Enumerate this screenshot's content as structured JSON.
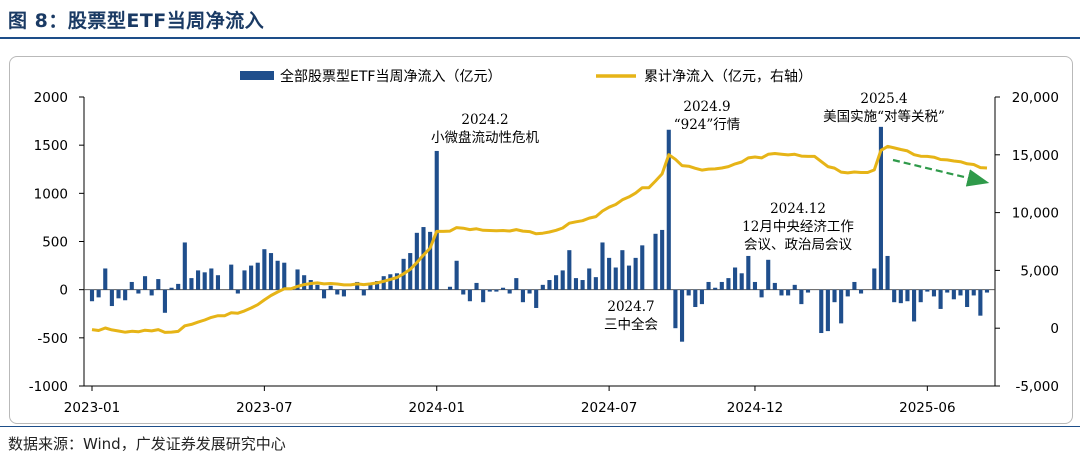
{
  "header": {
    "title": "图 8：股票型ETF当周净流入"
  },
  "footer": {
    "source": "数据来源：Wind，广发证券发展研究中心"
  },
  "chart_data": {
    "type": "bar+line",
    "title": "",
    "legend": {
      "placement": "top-center",
      "entries": [
        {
          "name": "全部股票型ETF当周净流入（亿元）",
          "kind": "bar",
          "color": "#1f4e8c"
        },
        {
          "name": "累计净流入（亿元，右轴）",
          "kind": "line",
          "color": "#e6b417"
        }
      ]
    },
    "left_axis": {
      "ylim": [
        -1000,
        2000
      ],
      "ticks": [
        -1000,
        -500,
        0,
        500,
        1000,
        1500,
        2000
      ],
      "tick_labels": [
        "-1000",
        "-500",
        "0",
        "500",
        "1000",
        "1500",
        "2000"
      ]
    },
    "right_axis": {
      "ylim": [
        -5000,
        20000
      ],
      "ticks": [
        -5000,
        0,
        5000,
        10000,
        15000,
        20000
      ],
      "tick_labels": [
        "-5,000",
        "0",
        "5,000",
        "10,000",
        "15,000",
        "20,000"
      ]
    },
    "x_axis": {
      "start": "2023-01-06",
      "step_days": 7,
      "tick_labels": [
        "2023-01",
        "2023-07",
        "2024-01",
        "2024-07",
        "2024-12",
        "2025-06"
      ],
      "tick_dates": [
        "2023-01-06",
        "2023-07-07",
        "2024-01-05",
        "2024-07-05",
        "2024-12-06",
        "2025-06-06"
      ]
    },
    "series": [
      {
        "name": "全部股票型ETF当周净流入（亿元）",
        "type": "bar",
        "axis": "left",
        "values": [
          -120,
          -80,
          220,
          -170,
          -90,
          -110,
          80,
          -40,
          140,
          -60,
          110,
          -240,
          20,
          60,
          490,
          120,
          200,
          180,
          220,
          150,
          0,
          260,
          -40,
          200,
          250,
          280,
          420,
          380,
          300,
          280,
          0,
          210,
          150,
          100,
          50,
          -90,
          40,
          -50,
          -70,
          0,
          80,
          -60,
          60,
          90,
          140,
          160,
          170,
          320,
          380,
          590,
          650,
          600,
          1440,
          0,
          30,
          300,
          -50,
          -120,
          70,
          -130,
          -20,
          -20,
          20,
          -40,
          120,
          -130,
          -40,
          -190,
          50,
          100,
          150,
          200,
          410,
          120,
          100,
          220,
          130,
          490,
          330,
          230,
          410,
          250,
          330,
          460,
          0,
          580,
          620,
          1660,
          -400,
          -540,
          -60,
          -180,
          -150,
          80,
          20,
          80,
          120,
          230,
          170,
          350,
          80,
          -80,
          310,
          70,
          -60,
          -60,
          50,
          -150,
          -30,
          0,
          -450,
          -430,
          -130,
          -350,
          -70,
          80,
          -40,
          0,
          220,
          1690,
          350,
          -130,
          -140,
          -120,
          -330,
          -130,
          -20,
          -70,
          -200,
          -30,
          -100,
          -60,
          -180,
          -60,
          -270,
          -30
        ]
      },
      {
        "name": "累计净流入（亿元，右轴）",
        "type": "line",
        "axis": "right",
        "values": [
          -120,
          -200,
          20,
          -150,
          -240,
          -350,
          -270,
          -310,
          -170,
          -230,
          -120,
          -360,
          -340,
          -280,
          210,
          330,
          530,
          710,
          930,
          1080,
          1080,
          1340,
          1300,
          1500,
          1750,
          2030,
          2450,
          2830,
          3130,
          3410,
          3410,
          3620,
          3770,
          3870,
          3920,
          3830,
          3870,
          3820,
          3750,
          3750,
          3830,
          3770,
          3830,
          3920,
          4060,
          4220,
          4390,
          4710,
          5090,
          5680,
          6330,
          6930,
          8370,
          8370,
          8400,
          8700,
          8650,
          8530,
          8600,
          8470,
          8450,
          8430,
          8450,
          8410,
          8530,
          8400,
          8360,
          8170,
          8220,
          8320,
          8470,
          8670,
          9080,
          9200,
          9300,
          9520,
          9650,
          10140,
          10470,
          10700,
          11110,
          11360,
          11690,
          12150,
          12150,
          12730,
          13350,
          15010,
          14610,
          14070,
          14010,
          13830,
          13680,
          13760,
          13780,
          13860,
          13980,
          14210,
          14380,
          14730,
          14810,
          14730,
          15040,
          15110,
          15050,
          14990,
          15040,
          14890,
          14860,
          14860,
          14410,
          13980,
          13850,
          13500,
          13430,
          13510,
          13470,
          13470,
          13690,
          15380,
          15730,
          15600,
          15460,
          15340,
          15010,
          14880,
          14860,
          14790,
          14590,
          14560,
          14460,
          14400,
          14220,
          14160,
          13890,
          13860
        ]
      }
    ],
    "annotations": [
      {
        "id": "a1",
        "lines": [
          "2024.2",
          "小微盘流动性危机"
        ]
      },
      {
        "id": "a2",
        "lines": [
          "2024.9",
          "“924”行情"
        ]
      },
      {
        "id": "a3",
        "lines": [
          "2025.4",
          "美国实施“对等关税”"
        ]
      },
      {
        "id": "a4",
        "lines": [
          "2024.12",
          "12月中央经济工作",
          "会议、政治局会议"
        ]
      },
      {
        "id": "a5",
        "lines": [
          "2024.7",
          "三中全会"
        ]
      }
    ],
    "trend_arrow": {
      "color": "#2f9a4a",
      "style": "dashed",
      "direction": "down-right"
    }
  }
}
